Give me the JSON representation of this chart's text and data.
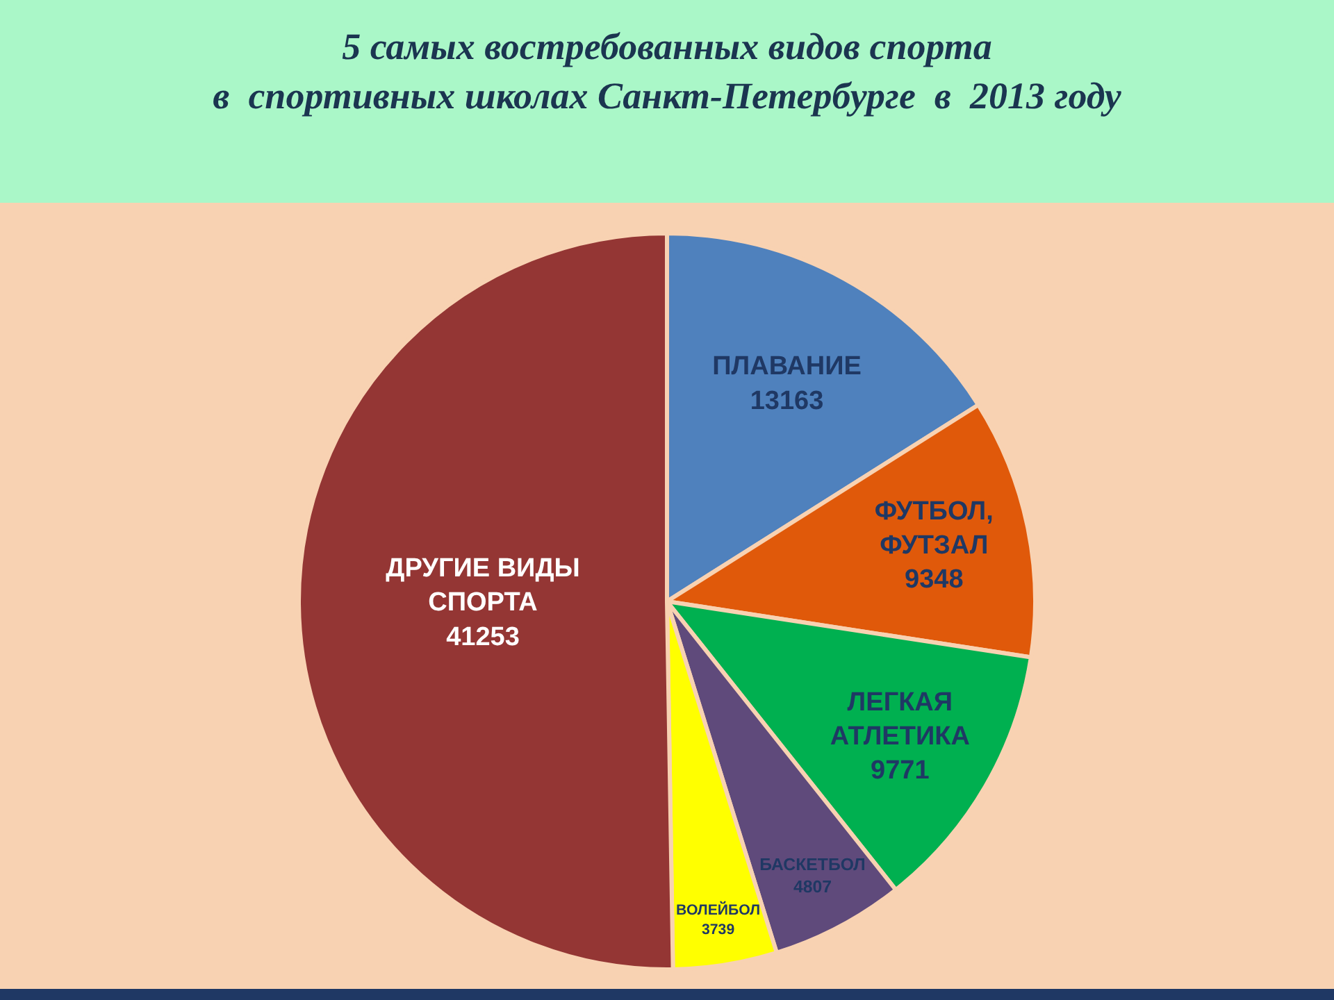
{
  "chart_data": {
    "type": "pie",
    "title": "5 самых востребованных видов спорта\nв  спортивных школах Санкт-Петербурге  в  2013 году",
    "categories": [
      "ПЛАВАНИЕ",
      "ФУТБОЛ, ФУТЗАЛ",
      "ЛЕГКАЯ АТЛЕТИКА",
      "БАСКЕТБОЛ",
      "ВОЛЕЙБОЛ",
      "ДРУГИЕ ВИДЫ СПОРТА"
    ],
    "values": [
      13163,
      9348,
      9771,
      4807,
      3739,
      41253
    ],
    "colors": [
      "#4f81bd",
      "#e0590a",
      "#00b050",
      "#5f4a7b",
      "#ffff00",
      "#943634"
    ],
    "data_labels": true
  }
}
